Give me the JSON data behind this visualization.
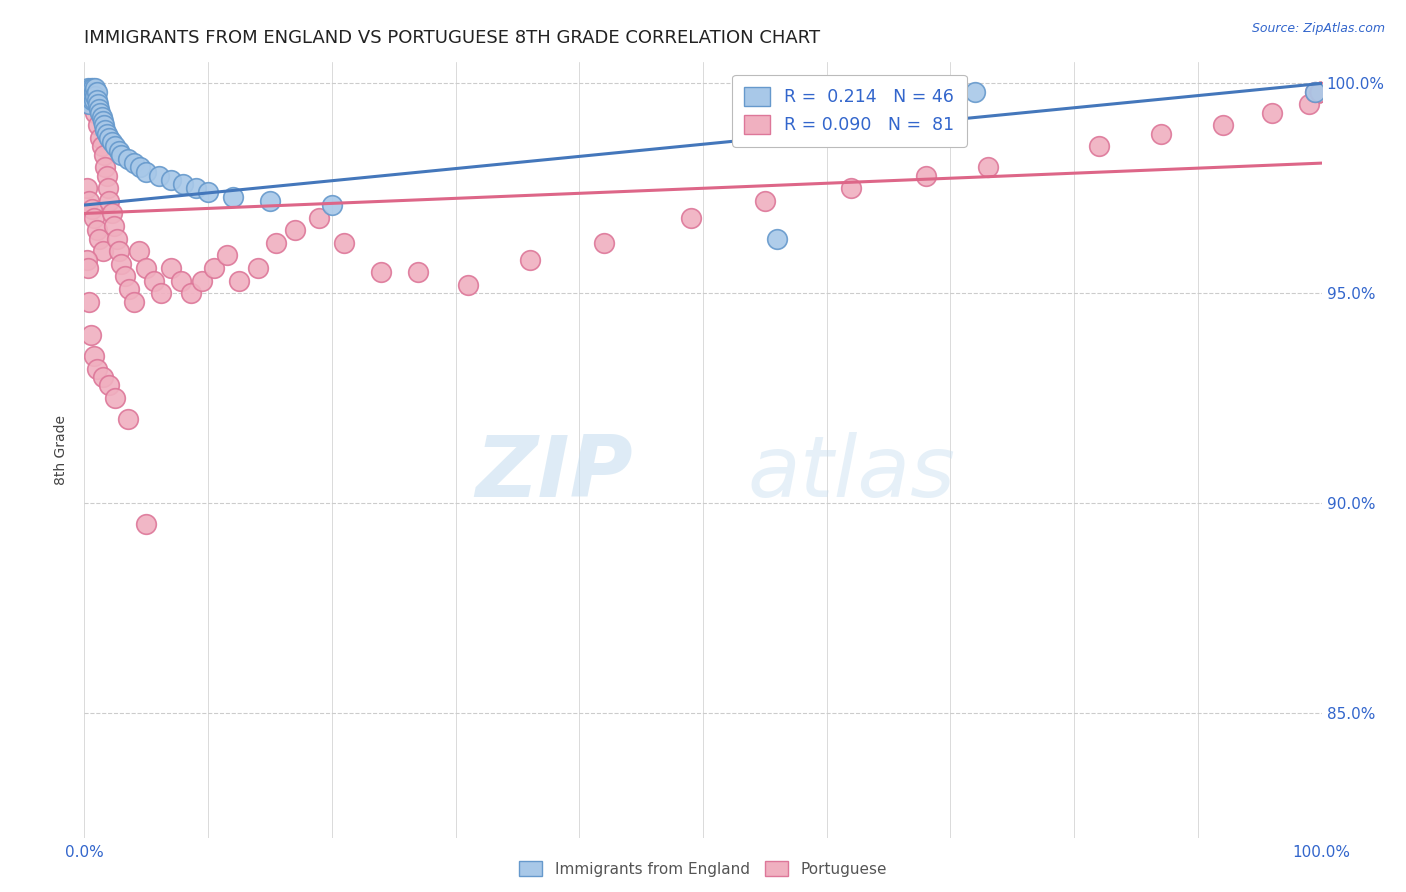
{
  "title": "IMMIGRANTS FROM ENGLAND VS PORTUGUESE 8TH GRADE CORRELATION CHART",
  "source": "Source: ZipAtlas.com",
  "ylabel": "8th Grade",
  "color_england": "#a8c8e8",
  "color_england_edge": "#6699cc",
  "color_portuguese": "#f0b0c0",
  "color_portuguese_edge": "#dd7799",
  "color_england_line": "#4477bb",
  "color_portuguese_line": "#dd6688",
  "color_axis_labels": "#3366cc",
  "background_color": "#ffffff",
  "xlim": [
    0.0,
    1.0
  ],
  "ylim": [
    0.82,
    1.005
  ],
  "y_ticks": [
    0.85,
    0.9,
    0.95,
    1.0
  ],
  "y_tick_labels": [
    "85.0%",
    "90.0%",
    "95.0%",
    "100.0%"
  ],
  "eng_line_start": 0.971,
  "eng_line_end": 1.0,
  "por_line_start": 0.969,
  "por_line_end": 0.981,
  "england_x": [
    0.001,
    0.002,
    0.003,
    0.003,
    0.004,
    0.004,
    0.005,
    0.005,
    0.006,
    0.006,
    0.007,
    0.007,
    0.008,
    0.008,
    0.009,
    0.009,
    0.01,
    0.01,
    0.011,
    0.012,
    0.013,
    0.014,
    0.015,
    0.016,
    0.017,
    0.018,
    0.02,
    0.022,
    0.025,
    0.028,
    0.03,
    0.035,
    0.04,
    0.045,
    0.05,
    0.06,
    0.07,
    0.08,
    0.09,
    0.1,
    0.12,
    0.15,
    0.2,
    0.56,
    0.72,
    0.995
  ],
  "england_y": [
    0.998,
    0.997,
    0.999,
    0.996,
    0.998,
    0.995,
    0.999,
    0.997,
    0.998,
    0.996,
    0.999,
    0.997,
    0.998,
    0.996,
    0.999,
    0.997,
    0.998,
    0.996,
    0.995,
    0.994,
    0.993,
    0.992,
    0.991,
    0.99,
    0.989,
    0.988,
    0.987,
    0.986,
    0.985,
    0.984,
    0.983,
    0.982,
    0.981,
    0.98,
    0.979,
    0.978,
    0.977,
    0.976,
    0.975,
    0.974,
    0.973,
    0.972,
    0.971,
    0.963,
    0.998,
    0.998
  ],
  "portuguese_x": [
    0.001,
    0.002,
    0.003,
    0.004,
    0.005,
    0.006,
    0.007,
    0.008,
    0.009,
    0.01,
    0.011,
    0.012,
    0.013,
    0.014,
    0.015,
    0.016,
    0.017,
    0.018,
    0.019,
    0.02,
    0.022,
    0.024,
    0.026,
    0.028,
    0.03,
    0.033,
    0.036,
    0.04,
    0.044,
    0.05,
    0.056,
    0.062,
    0.07,
    0.078,
    0.086,
    0.095,
    0.105,
    0.115,
    0.125,
    0.14,
    0.155,
    0.17,
    0.19,
    0.21,
    0.24,
    0.27,
    0.31,
    0.36,
    0.42,
    0.49,
    0.55,
    0.62,
    0.68,
    0.73,
    0.82,
    0.87,
    0.92,
    0.96,
    0.99,
    0.995,
    0.999,
    0.999,
    0.999,
    0.999,
    0.999,
    0.999,
    0.999,
    0.999,
    0.999,
    0.999,
    0.002,
    0.003,
    0.004,
    0.005,
    0.008,
    0.01,
    0.015,
    0.02,
    0.025,
    0.035,
    0.05
  ],
  "portuguese_y": [
    0.997,
    0.975,
    0.995,
    0.972,
    0.998,
    0.97,
    0.996,
    0.968,
    0.993,
    0.965,
    0.99,
    0.963,
    0.987,
    0.985,
    0.96,
    0.983,
    0.98,
    0.978,
    0.975,
    0.972,
    0.969,
    0.966,
    0.963,
    0.96,
    0.957,
    0.954,
    0.951,
    0.948,
    0.96,
    0.956,
    0.953,
    0.95,
    0.956,
    0.953,
    0.95,
    0.953,
    0.956,
    0.959,
    0.953,
    0.956,
    0.962,
    0.965,
    0.968,
    0.962,
    0.955,
    0.955,
    0.952,
    0.958,
    0.962,
    0.968,
    0.972,
    0.975,
    0.978,
    0.98,
    0.985,
    0.988,
    0.99,
    0.993,
    0.995,
    0.998,
    0.998,
    0.998,
    0.998,
    0.998,
    0.998,
    0.998,
    0.998,
    0.998,
    0.998,
    0.998,
    0.958,
    0.956,
    0.948,
    0.94,
    0.935,
    0.932,
    0.93,
    0.928,
    0.925,
    0.92,
    0.895
  ]
}
